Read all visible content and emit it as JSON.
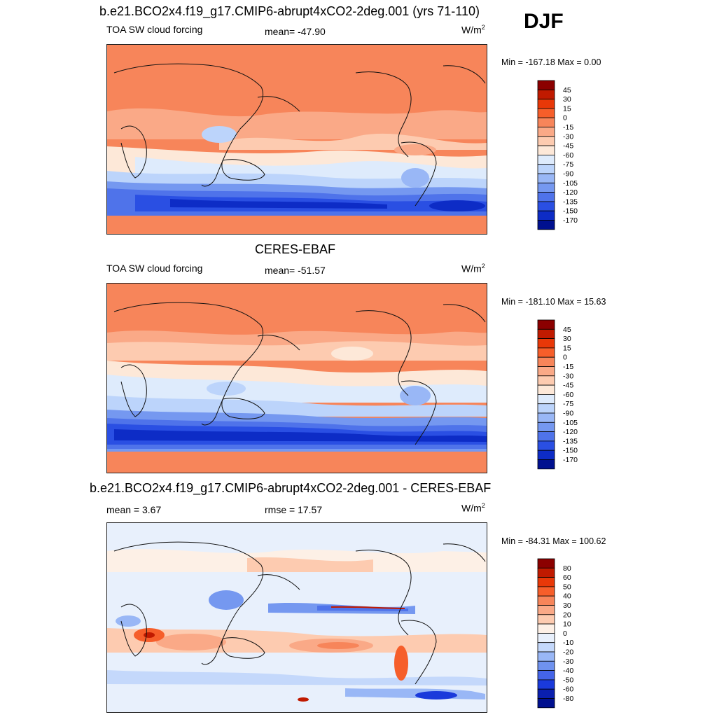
{
  "header": {
    "title": "b.e21.BCO2x4.f19_g17.CMIP6-abrupt4xCO2-2deg.001 (yrs 71-110)",
    "season": "DJF"
  },
  "units": {
    "base": "W/m",
    "exp": "2"
  },
  "panels": [
    {
      "name": "model",
      "title": "",
      "left_label": "TOA SW cloud forcing",
      "center_label": "mean= -47.90",
      "minmax": "Min = -167.18 Max =   0.00"
    },
    {
      "name": "obs",
      "title": "CERES-EBAF",
      "left_label": "TOA SW cloud forcing",
      "center_label": "mean= -51.57",
      "minmax": "Min = -181.10 Max =  15.63"
    },
    {
      "name": "diff",
      "title": "b.e21.BCO2x4.f19_g17.CMIP6-abrupt4xCO2-2deg.001 - CERES-EBAF",
      "left_label": "mean =   3.67",
      "center_label": "rmse =  17.57",
      "minmax": "Min = -84.31 Max = 100.62"
    }
  ],
  "chart_data": [
    {
      "type": "heatmap",
      "title": "b.e21.BCO2x4.f19_g17.CMIP6-abrupt4xCO2-2deg.001 (yrs 71-110)",
      "variable": "TOA SW cloud forcing",
      "units": "W/m2",
      "season": "DJF",
      "mean": -47.9,
      "min": -167.18,
      "max": 0.0,
      "colorbar_levels": [
        45,
        30,
        15,
        0,
        -15,
        -30,
        -45,
        -60,
        -75,
        -90,
        -105,
        -120,
        -135,
        -150,
        -170
      ],
      "colorbar_colors": [
        "#8b0000",
        "#c01a00",
        "#e83808",
        "#f65e2a",
        "#f7855a",
        "#faa987",
        "#fdcbb0",
        "#fde8d8",
        "#deebfc",
        "#bcd4fb",
        "#99b7f6",
        "#7598f0",
        "#4f73ea",
        "#2a4fe3",
        "#0d2cc6",
        "#00108f"
      ]
    },
    {
      "type": "heatmap",
      "title": "CERES-EBAF",
      "variable": "TOA SW cloud forcing",
      "units": "W/m2",
      "mean": -51.57,
      "min": -181.1,
      "max": 15.63,
      "colorbar_levels": [
        45,
        30,
        15,
        0,
        -15,
        -30,
        -45,
        -60,
        -75,
        -90,
        -105,
        -120,
        -135,
        -150,
        -170
      ],
      "colorbar_colors": [
        "#8b0000",
        "#c01a00",
        "#e83808",
        "#f65e2a",
        "#f7855a",
        "#faa987",
        "#fdcbb0",
        "#fde8d8",
        "#deebfc",
        "#bcd4fb",
        "#99b7f6",
        "#7598f0",
        "#4f73ea",
        "#2a4fe3",
        "#0d2cc6",
        "#00108f"
      ]
    },
    {
      "type": "heatmap",
      "title": "b.e21.BCO2x4.f19_g17.CMIP6-abrupt4xCO2-2deg.001 - CERES-EBAF",
      "units": "W/m2",
      "mean": 3.67,
      "rmse": 17.57,
      "min": -84.31,
      "max": 100.62,
      "colorbar_levels": [
        80,
        60,
        50,
        40,
        30,
        20,
        10,
        0,
        -10,
        -20,
        -30,
        -40,
        -50,
        -60,
        -80
      ],
      "colorbar_colors": [
        "#8b0000",
        "#c01a00",
        "#e83808",
        "#f65e2a",
        "#f7855a",
        "#faa987",
        "#fdcbb0",
        "#fdf0e6",
        "#e8f0fc",
        "#c4d8fb",
        "#99b7f6",
        "#6f92ef",
        "#4464e8",
        "#1a3adb",
        "#0a1fae",
        "#00108f"
      ]
    }
  ]
}
